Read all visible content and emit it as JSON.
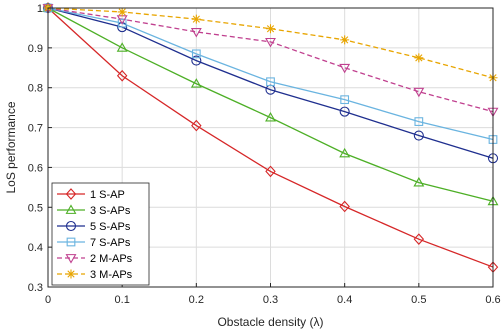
{
  "chart_data": {
    "type": "line",
    "title": "",
    "xlabel": "Obstacle density (λ)",
    "ylabel": "LoS performance",
    "xlim": [
      0,
      0.6
    ],
    "ylim": [
      0.3,
      1
    ],
    "x_ticks": [
      "0",
      "0.1",
      "0.2",
      "0.3",
      "0.4",
      "0.5",
      "0.6"
    ],
    "y_ticks": [
      "0.3",
      "0.4",
      "0.5",
      "0.6",
      "0.7",
      "0.8",
      "0.9",
      "1"
    ],
    "grid": true,
    "legend_position": "bottom-left",
    "x": [
      0,
      0.1,
      0.2,
      0.3,
      0.4,
      0.5,
      0.6
    ],
    "series": [
      {
        "name": "1 S-AP",
        "color": "#d62728",
        "marker": "diamond",
        "dash": "solid",
        "values": [
          1.0,
          0.83,
          0.705,
          0.59,
          0.502,
          0.42,
          0.35
        ]
      },
      {
        "name": "3 S-APs",
        "color": "#4daf26",
        "marker": "triangle-up",
        "dash": "solid",
        "values": [
          1.0,
          0.9,
          0.81,
          0.725,
          0.635,
          0.562,
          0.515
        ]
      },
      {
        "name": "5 S-APs",
        "color": "#1f2f8f",
        "marker": "circle",
        "dash": "solid",
        "values": [
          1.0,
          0.952,
          0.868,
          0.795,
          0.74,
          0.68,
          0.623
        ]
      },
      {
        "name": "7 S-APs",
        "color": "#6ab4e0",
        "marker": "square",
        "dash": "solid",
        "values": [
          1.0,
          0.962,
          0.885,
          0.815,
          0.77,
          0.715,
          0.67
        ]
      },
      {
        "name": "2 M-APs",
        "color": "#c0408f",
        "marker": "triangle-down",
        "dash": "dashed",
        "values": [
          1.0,
          0.972,
          0.94,
          0.915,
          0.85,
          0.79,
          0.74
        ]
      },
      {
        "name": "3 M-APs",
        "color": "#e8a500",
        "marker": "asterisk",
        "dash": "dashed",
        "values": [
          1.0,
          0.99,
          0.972,
          0.948,
          0.92,
          0.875,
          0.825
        ]
      }
    ]
  }
}
